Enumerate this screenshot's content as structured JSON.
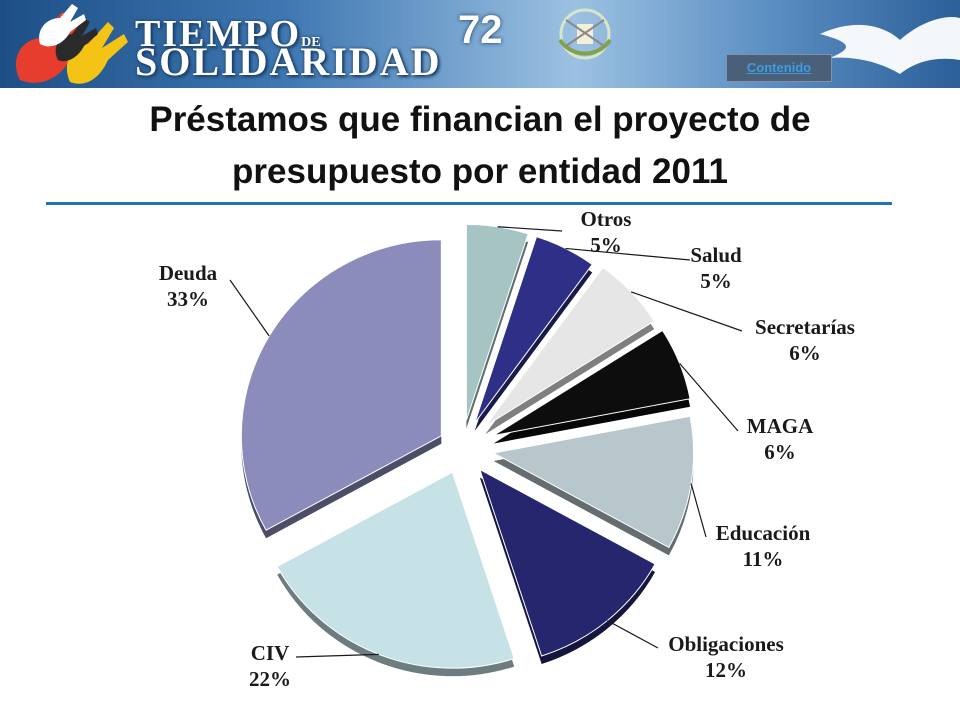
{
  "header": {
    "brand_line1": "TIEMPO",
    "brand_de": "DE",
    "brand_line2": "SOLIDARIDAD",
    "page_number": "72",
    "contents_link": "Contenido"
  },
  "chart_data": {
    "type": "pie",
    "title": "Préstamos que financian el proyecto de presupuesto por entidad 2011",
    "title_lines": [
      "Préstamos que financian el proyecto de",
      "presupuesto por entidad 2011"
    ],
    "exploded": true,
    "legend": "none",
    "slices": [
      {
        "label": "Otros",
        "value": 5,
        "display": "5%",
        "color": "#a7c4c5"
      },
      {
        "label": "Salud",
        "value": 5,
        "display": "5%",
        "color": "#2e2f86"
      },
      {
        "label": "Secretarías",
        "value": 6,
        "display": "6%",
        "color": "#e6e6e6"
      },
      {
        "label": "MAGA",
        "value": 6,
        "display": "6%",
        "color": "#0d0d0d"
      },
      {
        "label": "Educación",
        "value": 11,
        "display": "11%",
        "color": "#b7c7cc"
      },
      {
        "label": "Obligaciones",
        "value": 12,
        "display": "12%",
        "color": "#26266e"
      },
      {
        "label": "CIV",
        "value": 22,
        "display": "22%",
        "color": "#c6e2e6"
      },
      {
        "label": "Deuda",
        "value": 33,
        "display": "33%",
        "color": "#8c8cbc"
      }
    ]
  }
}
